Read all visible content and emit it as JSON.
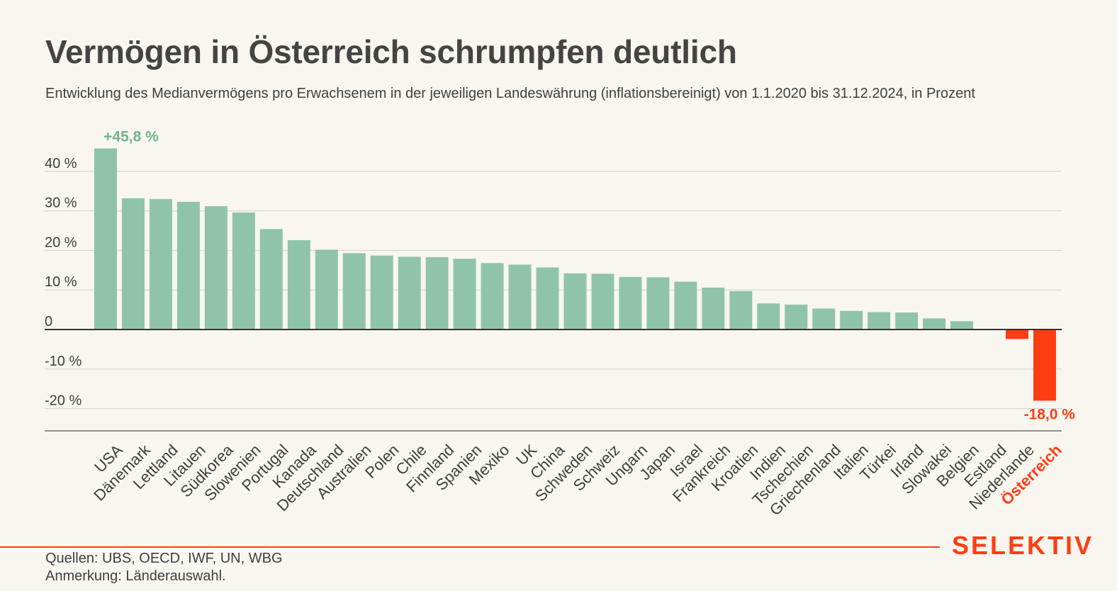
{
  "header": {
    "title": "Vermögen in Österreich schrumpfen deutlich",
    "subtitle": "Entwicklung des Medianvermögens pro Erwachsenem in der jeweiligen Landeswährung (inflationsbereinigt) von 1.1.2020 bis 31.12.2024, in Prozent"
  },
  "footer": {
    "source": "Quellen: UBS, OECD, IWF, UN, WBG",
    "note": "Anmerkung: Länderauswahl.",
    "brand": "SELEKTIV"
  },
  "colors": {
    "positive": "#8fc4a9",
    "negative": "#ff3d13",
    "positive_label": "#6fb58e",
    "grid": "#cfcfcf",
    "zero_line": "#333333",
    "background": "#f8f6ef"
  },
  "chart_data": {
    "type": "bar",
    "categories": [
      "USA",
      "Dänemark",
      "Lettland",
      "Litauen",
      "Südkorea",
      "Slowenien",
      "Portugal",
      "Kanada",
      "Deutschland",
      "Australien",
      "Polen",
      "Chile",
      "Finnland",
      "Spanien",
      "Mexiko",
      "UK",
      "China",
      "Schweden",
      "Schweiz",
      "Ungarn",
      "Japan",
      "Israel",
      "Frankreich",
      "Kroatien",
      "Indien",
      "Tschechien",
      "Griechenland",
      "Italien",
      "Türkei",
      "Irland",
      "Slowakei",
      "Belgien",
      "Estland",
      "Niederlande",
      "Österreich"
    ],
    "values": [
      45.8,
      33.2,
      33.0,
      32.3,
      31.2,
      29.6,
      25.4,
      22.6,
      20.2,
      19.3,
      18.7,
      18.4,
      18.3,
      17.9,
      16.8,
      16.4,
      15.7,
      14.2,
      14.1,
      13.3,
      13.2,
      12.1,
      10.6,
      9.7,
      6.6,
      6.3,
      5.3,
      4.7,
      4.4,
      4.3,
      2.8,
      2.1,
      0.1,
      -2.4,
      -18.0
    ],
    "highlight": "Österreich",
    "ylim": [
      -25,
      45.8
    ],
    "yticks": [
      {
        "value": 40,
        "label": "40 %"
      },
      {
        "value": 30,
        "label": "30 %"
      },
      {
        "value": 20,
        "label": "20 %"
      },
      {
        "value": 10,
        "label": "10 %"
      },
      {
        "value": 0,
        "label": "0"
      },
      {
        "value": -10,
        "label": "-10 %"
      },
      {
        "value": -20,
        "label": "-20 %"
      }
    ],
    "data_labels": [
      {
        "category": "USA",
        "text": "+45,8 %"
      },
      {
        "category": "Österreich",
        "text": "-18,0 %"
      }
    ],
    "grid": true,
    "xlabel": "",
    "ylabel": ""
  }
}
